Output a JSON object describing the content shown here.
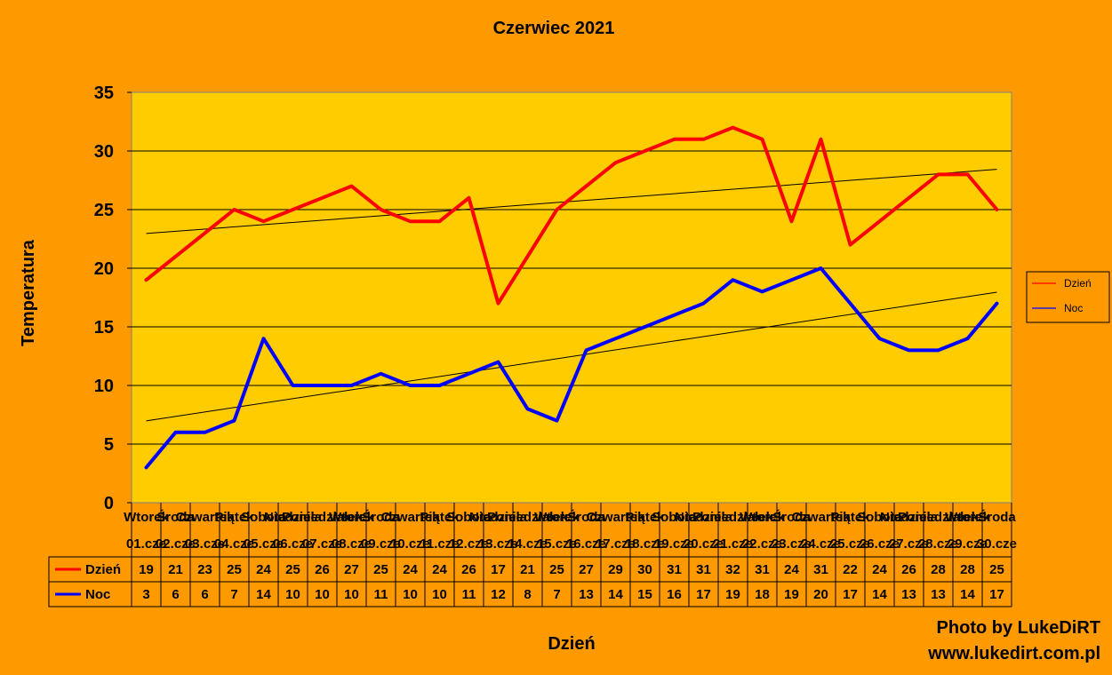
{
  "chart_data": {
    "type": "line",
    "title": "Czerwiec 2021",
    "xlabel": "Dzień",
    "ylabel": "Temperatura",
    "ylim": [
      0,
      35
    ],
    "yticks": [
      0,
      5,
      10,
      15,
      20,
      25,
      30,
      35
    ],
    "grid": true,
    "legend_position": "right",
    "weekdays": [
      "Wtorek",
      "Środa",
      "Czwartek",
      "Piątek",
      "Sobota",
      "Niedziela",
      "Poniedziałek",
      "Wtorek",
      "Środa",
      "Czwartek",
      "Piątek",
      "Sobota",
      "Niedziela",
      "Poniedziałek",
      "Wtorek",
      "Środa",
      "Czwartek",
      "Piątek",
      "Sobota",
      "Niedziela",
      "Poniedziałek",
      "Wtorek",
      "Środa",
      "Czwartek",
      "Piątek",
      "Sobota",
      "Niedziela",
      "Poniedziałek",
      "Wtorek",
      "Środa"
    ],
    "categories": [
      "01.cze",
      "02.cze",
      "03.cze",
      "04.cze",
      "05.cze",
      "06.cze",
      "07.cze",
      "08.cze",
      "09.cze",
      "10.cze",
      "11.cze",
      "12.cze",
      "13.cze",
      "14.cze",
      "15.cze",
      "16.cze",
      "17.cze",
      "18.cze",
      "19.cze",
      "20.cze",
      "21.cze",
      "22.cze",
      "23.cze",
      "24.cze",
      "25.cze",
      "26.cze",
      "27.cze",
      "28.cze",
      "29.cze",
      "30.cze"
    ],
    "series": [
      {
        "name": "Dzień",
        "color": "#FF0000",
        "trendline": true,
        "values": [
          19,
          21,
          23,
          25,
          24,
          25,
          26,
          27,
          25,
          24,
          24,
          26,
          17,
          21,
          25,
          27,
          29,
          30,
          31,
          31,
          32,
          31,
          24,
          31,
          22,
          24,
          26,
          28,
          28,
          25
        ]
      },
      {
        "name": "Noc",
        "color": "#0000FF",
        "trendline": true,
        "values": [
          3,
          6,
          6,
          7,
          14,
          10,
          10,
          10,
          11,
          10,
          10,
          11,
          12,
          8,
          7,
          13,
          14,
          15,
          16,
          17,
          19,
          18,
          19,
          20,
          17,
          14,
          13,
          13,
          14,
          17
        ]
      }
    ]
  },
  "credits": {
    "line1": "Photo by LukeDiRT",
    "line2": "www.lukedirt.com.pl"
  }
}
